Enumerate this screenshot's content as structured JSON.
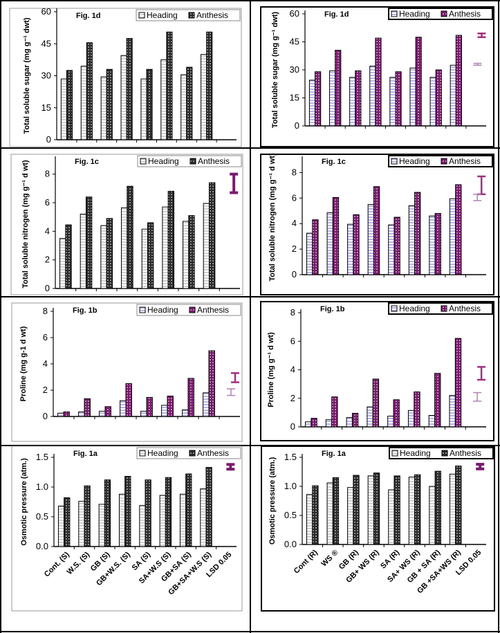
{
  "figure": {
    "panels": [
      {
        "id": "1d-s",
        "title": "Fig. 1d",
        "ylabel": "Total soluble sugar (mg g⁻¹ dwt)",
        "legend": [
          "Heading",
          "Anthesis"
        ]
      },
      {
        "id": "1d-r",
        "title": "Fig. 1d",
        "ylabel": "Total soluble sugar (mg g⁻¹ dwt)",
        "legend": [
          "Heading",
          "Anthesis"
        ]
      },
      {
        "id": "1c-s",
        "title": "Fig. 1c",
        "ylabel": "Total soluble nitrogen (mg g⁻¹ d wt)",
        "legend": [
          "Heading",
          "Anthesis"
        ]
      },
      {
        "id": "1c-r",
        "title": "Fig. 1c",
        "ylabel": "Total soluble nitrogen (mg g⁻¹ d wt)",
        "legend": [
          "Heading",
          "Anthesis"
        ]
      },
      {
        "id": "1b-s",
        "title": "Fig. 1b",
        "ylabel": "Proline (mg g-1 d wt)",
        "legend": [
          "Heading",
          "Anthesis"
        ]
      },
      {
        "id": "1b-r",
        "title": "Fig. 1b",
        "ylabel": "Proline (mg g⁻¹ d wt)",
        "legend": [
          "Heading",
          "Anthesis"
        ]
      },
      {
        "id": "1a-s",
        "title": "Fig. 1a",
        "ylabel": "Osmotic pressure (atm.)",
        "legend": [
          "Heading",
          "Anthesis"
        ]
      },
      {
        "id": "1a-r",
        "title": "Fig. 1a",
        "ylabel": "Osmotic pressure (atm.)",
        "legend": [
          "Heading",
          "Anthesis"
        ]
      }
    ]
  },
  "chart_data": [
    {
      "type": "bar",
      "title": "Fig. 1d",
      "xlabel": "",
      "ylabel": "Total soluble sugar (mg g-1 dwt)",
      "ylim": [
        0,
        60
      ],
      "yticks": [
        0,
        15,
        30,
        45,
        60
      ],
      "categories": [
        "Cont. (S)",
        "W.S. (S)",
        "GB (S)",
        "GB+W.S. (S)",
        "SA (S)",
        "SA+W.S (S)",
        "GB+SA (S)",
        "GB+SA+W.S (S)",
        "LSD 0.05"
      ],
      "series": [
        {
          "name": "Heading",
          "values": [
            28.5,
            34.5,
            29.5,
            39.5,
            28.5,
            37.5,
            30.5,
            40,
            null
          ]
        },
        {
          "name": "Anthesis",
          "values": [
            32.5,
            45.5,
            33,
            47.5,
            33,
            50.5,
            34,
            50.5,
            null
          ]
        }
      ],
      "colors": {
        "heading": "#d0d0d0",
        "anthesis": "#2b2b2b"
      },
      "legend": "top-right"
    },
    {
      "type": "bar",
      "title": "Fig. 1d",
      "xlabel": "",
      "ylabel": "Total soluble sugar (mg g-1 dwt)",
      "ylim": [
        0,
        60
      ],
      "yticks": [
        0,
        15,
        30,
        45,
        60
      ],
      "categories": [
        "Cont (R)",
        "WS ®",
        "GB (R)",
        "GB+ WS (R)",
        "SA (R)",
        "SA+ WS (R)",
        "GB + SA (R)",
        "GB +SA+WS (R)",
        "LSD 0.05"
      ],
      "series": [
        {
          "name": "Heading",
          "values": [
            24.5,
            29.5,
            26,
            32,
            26,
            31,
            26,
            32.5,
            null
          ]
        },
        {
          "name": "Anthesis",
          "values": [
            29,
            40.5,
            29.5,
            47,
            29,
            47.5,
            30,
            48.5,
            null
          ]
        }
      ],
      "lsd": {
        "heading": [
          32.5,
          33.5
        ],
        "anthesis": [
          47.5,
          49.5
        ]
      },
      "colors": {
        "heading": "#b8b4e8",
        "anthesis": "#7a1a6e"
      },
      "legend": "top-right"
    },
    {
      "type": "bar",
      "title": "Fig. 1c",
      "xlabel": "",
      "ylabel": "Total soluble nitrogen (mg g-1 d wt)",
      "ylim": [
        0,
        9
      ],
      "yticks": [
        0,
        2,
        4,
        6,
        8
      ],
      "categories": [
        "Cont. (S)",
        "W.S. (S)",
        "GB (S)",
        "GB+W.S. (S)",
        "SA (S)",
        "SA+W.S (S)",
        "GB+SA (S)",
        "GB+SA+W.S (S)",
        "LSD 0.05"
      ],
      "series": [
        {
          "name": "Heading",
          "values": [
            3.5,
            5.2,
            4.4,
            5.65,
            4.15,
            5.7,
            4.7,
            5.95,
            null
          ]
        },
        {
          "name": "Anthesis",
          "values": [
            4.45,
            6.4,
            4.9,
            7.15,
            4.6,
            6.8,
            5.1,
            7.4,
            null
          ]
        }
      ],
      "lsd": {
        "single": [
          6.7,
          8.0
        ]
      },
      "colors": {
        "heading": "#d0d0d0",
        "anthesis": "#2b2b2b",
        "lsd": "#7a1a6e"
      },
      "legend": "top-right"
    },
    {
      "type": "bar",
      "title": "Fig. 1c",
      "xlabel": "",
      "ylabel": "Total soluble nitrogen (mg g-1 d wt)",
      "ylim": [
        0,
        9
      ],
      "yticks": [
        0,
        2,
        4,
        6,
        8
      ],
      "categories": [
        "Cont (R)",
        "WS ®",
        "GB (R)",
        "GB+ WS (R)",
        "SA (R)",
        "SA+ WS (R)",
        "GB + SA (R)",
        "GB +SA+WS (R)",
        "LSD 0.05"
      ],
      "series": [
        {
          "name": "Heading",
          "values": [
            3.25,
            4.85,
            3.95,
            5.5,
            3.9,
            5.4,
            4.6,
            5.95,
            null
          ]
        },
        {
          "name": "Anthesis",
          "values": [
            4.3,
            6.05,
            4.7,
            6.9,
            4.5,
            6.45,
            4.8,
            7.05,
            null
          ]
        }
      ],
      "lsd": {
        "heading": [
          5.8,
          6.3
        ],
        "anthesis": [
          6.3,
          7.7
        ]
      },
      "colors": {
        "heading": "#b8b4e8",
        "anthesis": "#7a1a6e"
      },
      "legend": "top-right"
    },
    {
      "type": "bar",
      "title": "Fig. 1b",
      "xlabel": "",
      "ylabel": "Proline (mg g-1 d wt)",
      "ylim": [
        0,
        8
      ],
      "yticks": [
        0,
        2,
        4,
        6,
        8
      ],
      "categories": [
        "Cont. (S)",
        "W.S. (S)",
        "GB (S)",
        "GB+W.S. (S)",
        "SA (S)",
        "SA+W.S (S)",
        "GB+SA (S)",
        "GB+SA+W.S (S)",
        "LSD 0.05"
      ],
      "series": [
        {
          "name": "Heading",
          "values": [
            0.25,
            0.35,
            0.4,
            1.2,
            0.4,
            0.85,
            0.5,
            1.8,
            null
          ]
        },
        {
          "name": "Anthesis",
          "values": [
            0.35,
            1.35,
            0.75,
            2.5,
            1.45,
            1.55,
            2.9,
            5.0,
            null
          ]
        }
      ],
      "lsd": {
        "heading": [
          1.6,
          2.1
        ],
        "anthesis": [
          2.6,
          3.3
        ]
      },
      "colors": {
        "heading": "#b8b4e8",
        "anthesis": "#7a1a6e"
      },
      "legend": "top-right"
    },
    {
      "type": "bar",
      "title": "Fig. 1b",
      "xlabel": "",
      "ylabel": "Proline (mg g-1 d wt)",
      "ylim": [
        0,
        8
      ],
      "yticks": [
        0,
        2,
        4,
        6,
        8
      ],
      "categories": [
        "Cont (R)",
        "WS ®",
        "GB (R)",
        "GB+ WS (R)",
        "SA (R)",
        "SA+ WS (R)",
        "GB + SA (R)",
        "GB +SA+WS (R)",
        "LSD 0.05"
      ],
      "series": [
        {
          "name": "Heading",
          "values": [
            0.35,
            0.5,
            0.65,
            1.4,
            0.75,
            1.15,
            0.8,
            2.2,
            null
          ]
        },
        {
          "name": "Anthesis",
          "values": [
            0.6,
            2.1,
            0.95,
            3.35,
            1.9,
            2.45,
            3.75,
            6.2,
            null
          ]
        }
      ],
      "lsd": {
        "heading": [
          1.8,
          2.4
        ],
        "anthesis": [
          3.3,
          4.2
        ]
      },
      "colors": {
        "heading": "#b8b4e8",
        "anthesis": "#7a1a6e"
      },
      "legend": "top-right"
    },
    {
      "type": "bar",
      "title": "Fig. 1a",
      "xlabel": "",
      "ylabel": "Osmotic pressure (atm.)",
      "ylim": [
        0,
        1.5
      ],
      "yticks": [
        "0.0",
        "0.5",
        "1.0",
        "1.5"
      ],
      "categories": [
        "Cont.  (S)",
        "W.S.   (S)",
        "GB   (S)",
        "GB+W.S.  (S)",
        "SA    (S)",
        "SA+W.S (S)",
        "GB+SA  (S)",
        "GB+SA+W.S (S)",
        "LSD 0.05"
      ],
      "series": [
        {
          "name": "Heading",
          "values": [
            0.68,
            0.76,
            0.71,
            0.88,
            0.69,
            0.86,
            0.88,
            0.97,
            null
          ]
        },
        {
          "name": "Anthesis",
          "values": [
            0.82,
            1.02,
            1.12,
            1.18,
            1.12,
            1.16,
            1.22,
            1.33,
            null
          ]
        }
      ],
      "lsd": {
        "single": [
          1.3,
          1.38
        ]
      },
      "colors": {
        "heading": "#d0d0d0",
        "anthesis": "#2b2b2b",
        "lsd": "#7a1a6e"
      },
      "legend": "top-right"
    },
    {
      "type": "bar",
      "title": "Fig. 1a",
      "xlabel": "",
      "ylabel": "Osmotic pressure (atm.)",
      "ylim": [
        0,
        1.5
      ],
      "yticks": [
        "0.0",
        "0.5",
        "1.0",
        "1.5"
      ],
      "categories": [
        "Cont (R)",
        "WS ®",
        "GB  (R)",
        "GB+ WS (R)",
        "SA   (R)",
        "SA+ WS (R)",
        "GB + SA (R)",
        "GB +SA+WS (R)",
        "LSD 0.05"
      ],
      "series": [
        {
          "name": "Heading",
          "values": [
            0.86,
            1.06,
            0.98,
            1.18,
            0.94,
            1.16,
            1.0,
            1.21,
            null
          ]
        },
        {
          "name": "Anthesis",
          "values": [
            1.01,
            1.15,
            1.19,
            1.23,
            1.18,
            1.2,
            1.26,
            1.35,
            null
          ]
        }
      ],
      "lsd": {
        "single": [
          1.3,
          1.38
        ]
      },
      "colors": {
        "heading": "#d0d0d0",
        "anthesis": "#2b2b2b",
        "lsd": "#7a1a6e"
      },
      "legend": "top-right"
    }
  ]
}
